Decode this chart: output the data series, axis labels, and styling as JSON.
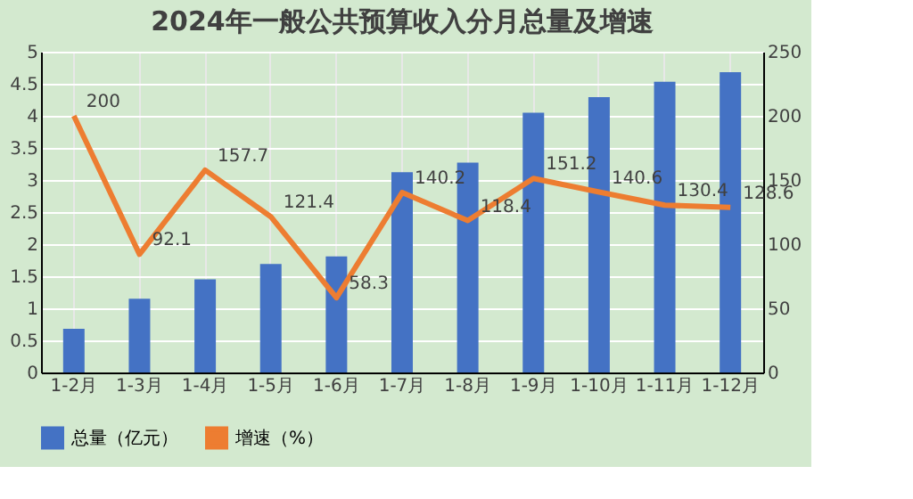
{
  "chart_data": {
    "type": "bar",
    "title": "2024年一般公共预算收入分月总量及增速",
    "categories": [
      "1-2月",
      "1-3月",
      "1-4月",
      "1-5月",
      "1-6月",
      "1-7月",
      "1-8月",
      "1-9月",
      "1-10月",
      "1-11月",
      "1-12月"
    ],
    "series": [
      {
        "name": "总量（亿元）",
        "color": "#4472c4",
        "values": [
          0.68,
          1.15,
          1.45,
          1.69,
          1.81,
          3.12,
          3.27,
          4.05,
          4.29,
          4.53,
          4.68
        ]
      },
      {
        "name": "增速（%）",
        "type": "line",
        "axis": "y2",
        "color": "#ed7d31",
        "data_labels": true,
        "values": [
          200,
          92.1,
          157.7,
          121.4,
          58.3,
          140.2,
          118.4,
          151.2,
          140.6,
          130.4,
          128.6
        ]
      }
    ],
    "ylim": [
      0,
      5
    ],
    "yticks": [
      0,
      0.5,
      1,
      1.5,
      2,
      2.5,
      3,
      3.5,
      4,
      4.5,
      5
    ],
    "y2lim": [
      0,
      250
    ],
    "y2ticks": [
      0,
      50,
      100,
      150,
      200,
      250
    ],
    "grid": true,
    "legend": "bottom"
  }
}
